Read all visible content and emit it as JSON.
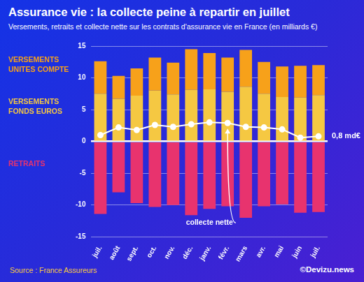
{
  "chart_data": {
    "type": "bar",
    "title": "Assurance vie : la collecte peine à repartir en juillet",
    "subtitle": "Versements, retraits et collecte nette sur les contrats d'assurance vie en France (en milliards €)",
    "source": "Source : France Assureurs",
    "credit": "©Devizu.news",
    "categories": [
      "juil.",
      "août",
      "sept.",
      "oct.",
      "nov.",
      "déc.",
      "janv.",
      "févr.",
      "mars",
      "avr.",
      "mai",
      "juin",
      "juil."
    ],
    "series": [
      {
        "name": "VERSEMENTS FONDS EUROS",
        "color": "#f5c842",
        "values": [
          7.5,
          6.7,
          7.2,
          8.0,
          7.4,
          8.1,
          8.2,
          7.8,
          8.6,
          7.5,
          7.0,
          6.9,
          7.3
        ]
      },
      {
        "name": "VERSEMENTS UNITES COMPTE",
        "color": "#f7a11a",
        "values": [
          5.1,
          3.6,
          4.3,
          5.2,
          5.0,
          6.4,
          5.7,
          5.4,
          5.8,
          5.0,
          4.8,
          5.0,
          4.7
        ]
      },
      {
        "name": "RETRAITS",
        "color": "#e8336e",
        "values": [
          -11.4,
          -8.0,
          -9.7,
          -10.3,
          -10.0,
          -11.6,
          -10.6,
          -10.2,
          -12.0,
          -10.2,
          -9.9,
          -11.2,
          -11.1
        ]
      },
      {
        "name": "collecte nette",
        "type": "line",
        "color": "#ffffff",
        "marker": "circle",
        "line_style": "solid",
        "values": [
          1.0,
          2.2,
          1.8,
          2.6,
          2.3,
          2.7,
          3.0,
          2.9,
          2.3,
          2.2,
          1.9,
          0.6,
          0.8
        ]
      }
    ],
    "annotations": [
      {
        "text": "0,8 md€",
        "value": 0.8
      }
    ],
    "ylim": [
      -15,
      15
    ],
    "yticks": [
      -15,
      -10,
      -5,
      0,
      5,
      10,
      15
    ],
    "stacked": true,
    "grid": true,
    "legend": "left"
  }
}
